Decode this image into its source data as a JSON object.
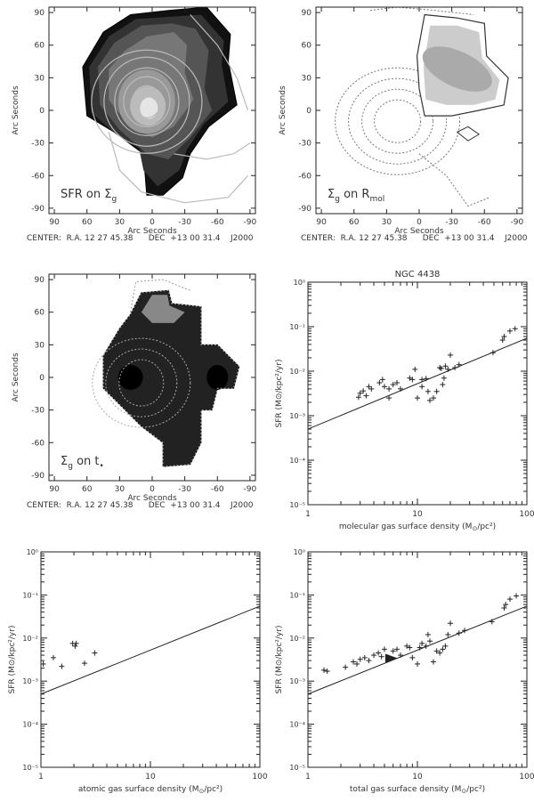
{
  "maps": [
    {
      "label": "SFR on Σ",
      "label_sub": "g",
      "y_label": "Arc Seconds",
      "x_label": "Arc Seconds",
      "center_text": "CENTER:  R.A. 12 27 45.38      DEC  +13 00 31.4    J2000"
    },
    {
      "label": "Σ",
      "label_sub": "g",
      "label_mid": " on R",
      "label_sub2": "mol",
      "y_label": "Arc Seconds",
      "x_label": "Arc Seconds",
      "center_text": "CENTER:  R.A. 12 27 45.38      DEC  +13 00 31.4    J2000"
    },
    {
      "label": "Σ",
      "label_sub": "g",
      "label_mid": " on t",
      "label_sub2": "•",
      "y_label": "Arc Seconds",
      "x_label": "Arc Seconds",
      "center_text": "CENTER:  R.A. 12 27 45.38      DEC  +13 00 31.4    J2000"
    }
  ],
  "map_ticks": {
    "x": [
      "90",
      "60",
      "30",
      "0",
      "-30",
      "-60",
      "-90"
    ],
    "y": [
      "90",
      "60",
      "30",
      "0",
      "-30",
      "-60",
      "-90"
    ]
  },
  "chart_data": [
    {
      "type": "scatter",
      "title": "NGC 4438",
      "xlabel": "molecular gas surface density (M",
      "xlabel_sub": "⊙",
      "xlabel_end": "/pc²)",
      "ylabel": "SFR (M⊙/kpc²/yr)",
      "x_scale": "log",
      "y_scale": "log",
      "xlim": [
        1,
        100
      ],
      "ylim": [
        1e-05,
        1
      ],
      "x_ticks": [
        "1",
        "10",
        "100"
      ],
      "y_ticks": [
        "10⁰",
        "10⁻¹",
        "10⁻²",
        "10⁻³",
        "10⁻⁴",
        "10⁻⁵"
      ],
      "line": [
        [
          1,
          0.0005
        ],
        [
          100,
          0.055
        ]
      ],
      "points": [
        [
          2.9,
          0.0026
        ],
        [
          3.0,
          0.0032
        ],
        [
          3.2,
          0.0036
        ],
        [
          3.4,
          0.0028
        ],
        [
          3.6,
          0.0045
        ],
        [
          3.8,
          0.004
        ],
        [
          4.5,
          0.0055
        ],
        [
          4.8,
          0.0065
        ],
        [
          5.0,
          0.0045
        ],
        [
          5.5,
          0.004
        ],
        [
          5.5,
          0.0025
        ],
        [
          6.0,
          0.005
        ],
        [
          6.5,
          0.0055
        ],
        [
          7.0,
          0.004
        ],
        [
          8.5,
          0.007
        ],
        [
          9.0,
          0.0065
        ],
        [
          9.5,
          0.011
        ],
        [
          10,
          0.0025
        ],
        [
          11,
          0.0065
        ],
        [
          11,
          0.0045
        ],
        [
          12,
          0.0068
        ],
        [
          12.5,
          0.0035
        ],
        [
          13,
          0.0022
        ],
        [
          14,
          0.0025
        ],
        [
          15,
          0.0035
        ],
        [
          16,
          0.012
        ],
        [
          16.5,
          0.0115
        ],
        [
          17,
          0.005
        ],
        [
          17.5,
          0.007
        ],
        [
          18,
          0.013
        ],
        [
          19,
          0.011
        ],
        [
          20,
          0.023
        ],
        [
          22,
          0.012
        ],
        [
          24,
          0.014
        ],
        [
          49,
          0.026
        ],
        [
          60,
          0.05
        ],
        [
          62,
          0.06
        ],
        [
          70,
          0.08
        ],
        [
          78,
          0.09
        ]
      ],
      "markers": []
    },
    {
      "type": "scatter",
      "title": "",
      "xlabel": "atomic gas surface density (M",
      "xlabel_sub": "⊙",
      "xlabel_end": "/pc²)",
      "ylabel": "SFR (M⊙/kpc²/yr)",
      "x_scale": "log",
      "y_scale": "log",
      "xlim": [
        1,
        100
      ],
      "ylim": [
        1e-05,
        1
      ],
      "x_ticks": [
        "1",
        "10",
        "100"
      ],
      "y_ticks": [
        "10⁰",
        "10⁻¹",
        "10⁻²",
        "10⁻³",
        "10⁻⁴",
        "10⁻⁵"
      ],
      "line": [
        [
          1,
          0.0005
        ],
        [
          100,
          0.055
        ]
      ],
      "points": [
        [
          1.05,
          0.0025
        ],
        [
          1.3,
          0.0035
        ],
        [
          1.55,
          0.0022
        ],
        [
          1.95,
          0.0075
        ],
        [
          2.05,
          0.0065
        ],
        [
          2.1,
          0.0075
        ],
        [
          2.5,
          0.0026
        ],
        [
          3.1,
          0.0045
        ]
      ],
      "markers": []
    },
    {
      "type": "scatter",
      "title": "",
      "xlabel": "total gas surface density (M",
      "xlabel_sub": "⊙",
      "xlabel_end": "/pc²)",
      "ylabel": "SFR (M⊙/kpc²/yr)",
      "x_scale": "log",
      "y_scale": "log",
      "xlim": [
        1,
        100
      ],
      "ylim": [
        1e-05,
        1
      ],
      "x_ticks": [
        "1",
        "10",
        "100"
      ],
      "y_ticks": [
        "10⁰",
        "10⁻¹",
        "10⁻²",
        "10⁻³",
        "10⁻⁴",
        "10⁻⁵"
      ],
      "line": [
        [
          1,
          0.0005
        ],
        [
          100,
          0.055
        ]
      ],
      "points": [
        [
          1.4,
          0.0018
        ],
        [
          1.5,
          0.0017
        ],
        [
          2.2,
          0.0021
        ],
        [
          2.6,
          0.0028
        ],
        [
          2.8,
          0.0025
        ],
        [
          3.0,
          0.0032
        ],
        [
          3.3,
          0.0035
        ],
        [
          3.6,
          0.003
        ],
        [
          4.0,
          0.004
        ],
        [
          4.4,
          0.0045
        ],
        [
          4.7,
          0.0037
        ],
        [
          5.0,
          0.0055
        ],
        [
          5.5,
          0.0035
        ],
        [
          6.0,
          0.005
        ],
        [
          6.5,
          0.0055
        ],
        [
          7.0,
          0.004
        ],
        [
          8.0,
          0.0065
        ],
        [
          8.5,
          0.006
        ],
        [
          9.0,
          0.0035
        ],
        [
          10,
          0.0025
        ],
        [
          10.5,
          0.006
        ],
        [
          11,
          0.0075
        ],
        [
          12,
          0.0065
        ],
        [
          12.5,
          0.012
        ],
        [
          13,
          0.0085
        ],
        [
          14,
          0.0028
        ],
        [
          15,
          0.005
        ],
        [
          16,
          0.0045
        ],
        [
          17,
          0.0055
        ],
        [
          18,
          0.0065
        ],
        [
          19,
          0.012
        ],
        [
          20,
          0.022
        ],
        [
          24,
          0.013
        ],
        [
          27,
          0.015
        ],
        [
          48,
          0.024
        ],
        [
          62,
          0.05
        ],
        [
          64,
          0.06
        ],
        [
          70,
          0.08
        ],
        [
          80,
          0.095
        ]
      ],
      "markers": [
        [
          5.8,
          0.0034
        ]
      ]
    }
  ]
}
